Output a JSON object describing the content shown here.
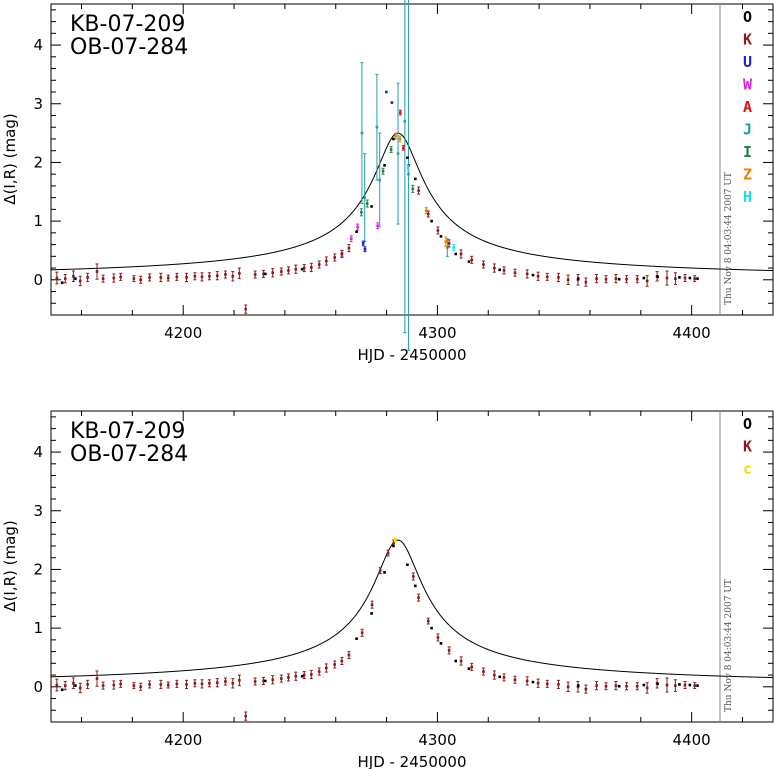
{
  "chart_data": [
    {
      "type": "scatter",
      "title": [
        "KB-07-209",
        "OB-07-284"
      ],
      "xlabel": "HJD - 2450000",
      "ylabel": "Δ(I,R) (mag)",
      "xlim": [
        4148,
        4432
      ],
      "ylim": [
        -0.6,
        4.7
      ],
      "xticks": [
        4200,
        4300,
        4400
      ],
      "yticks": [
        0,
        1,
        2,
        3,
        4
      ],
      "grid": false,
      "legend_placement": "right-strip",
      "legend": [
        {
          "label": "O",
          "color": "#000000"
        },
        {
          "label": "K",
          "color": "#8b1a1a"
        },
        {
          "label": "U",
          "color": "#1f1fd0"
        },
        {
          "label": "W",
          "color": "#e020e0"
        },
        {
          "label": "A",
          "color": "#e01010"
        },
        {
          "label": "J",
          "color": "#20a0a0"
        },
        {
          "label": "I",
          "color": "#208040"
        },
        {
          "label": "Z",
          "color": "#f08000"
        },
        {
          "label": "H",
          "color": "#20e0e0"
        }
      ],
      "timestamp": "Thu Nov 8 04:03:44 2007 UT",
      "model": {
        "t0": 4284.5,
        "amp": 2.5,
        "tau": 9.3
      },
      "series": [
        {
          "name": "J",
          "color": "#20a0a0",
          "x": [
            4270.3,
            4271.4,
            4276.2,
            4277.3,
            4284.5,
            4287.2,
            4288.6,
            4303.9
          ],
          "y": [
            2.5,
            1.4,
            2.6,
            1.7,
            2.15,
            2.7,
            1.8,
            0.55
          ],
          "err": [
            1.2,
            0.75,
            0.9,
            0.8,
            1.2,
            3.6,
            3.0,
            0.15
          ]
        },
        {
          "name": "U",
          "color": "#1f1fd0",
          "x": [
            4270.8,
            4271.5,
            4279.9,
            4282.1,
            4288.7
          ],
          "y": [
            0.62,
            0.52,
            3.2,
            3.02,
            1.95
          ],
          "err": [
            0.04,
            0.04,
            0.0,
            0.0,
            0.0
          ]
        },
        {
          "name": "W",
          "color": "#e020e0",
          "x": [
            4262.5,
            4266.1,
            4268.6,
            4276.5
          ],
          "y": [
            0.45,
            0.7,
            0.9,
            0.92
          ],
          "err": [
            0.05,
            0.05,
            0.05,
            0.05
          ]
        },
        {
          "name": "A",
          "color": "#e01010",
          "x": [
            4285.4,
            4286.6
          ],
          "y": [
            2.85,
            2.25
          ],
          "err": [
            0.04,
            0.04
          ]
        },
        {
          "name": "I",
          "color": "#208040",
          "x": [
            4270.1,
            4272.4,
            4278.6,
            4281.8,
            4290.3
          ],
          "y": [
            1.15,
            1.3,
            1.85,
            2.22,
            1.55
          ],
          "err": [
            0.06,
            0.06,
            0.05,
            0.05,
            0.06
          ]
        },
        {
          "name": "Z",
          "color": "#f08000",
          "x": [
            4283.6,
            4285.3,
            4295.6,
            4303.3
          ],
          "y": [
            2.45,
            2.4,
            1.18,
            0.65
          ],
          "err": [
            0.05,
            0.05,
            0.05,
            0.08
          ]
        },
        {
          "name": "H",
          "color": "#20e0e0",
          "x": [
            4288.5,
            4306.4
          ],
          "y": [
            1.9,
            0.55
          ],
          "err": [
            0.05,
            0.05
          ]
        },
        {
          "name": "K",
          "color": "#8b1a1a",
          "x": [
            4150.3,
            4153.6,
            4156.8,
            4159.5,
            4162.4,
            4166.1,
            4168.5,
            4172.7,
            4175.4,
            4180.6,
            4183.3,
            4186.8,
            4191.2,
            4194.1,
            4197.5,
            4201.3,
            4204.6,
            4207.4,
            4210.3,
            4213.4,
            4216.6,
            4219.5,
            4222.1,
            4224.6,
            4228.3,
            4231.6,
            4235.2,
            4238.6,
            4241.4,
            4244.3,
            4247.6,
            4250.4,
            4253.5,
            4256.3,
            4259.6,
            4262.4,
            4265.2,
            4292.6,
            4296.4,
            4300.2,
            4304.6,
            4309.3,
            4313.5,
            4318.1,
            4322.4,
            4326.2,
            4330.5,
            4335.3,
            4339.6,
            4343.2,
            4347.6,
            4351.4,
            4355.3,
            4358.4,
            4362.6,
            4366.3,
            4370.2,
            4374.4,
            4378.6,
            4382.5,
            4386.4,
            4390.3,
            4393.6,
            4397.4,
            4401.2
          ],
          "y": [
            0.03,
            0.02,
            0.06,
            -0.02,
            0.04,
            0.14,
            0.02,
            0.03,
            0.05,
            0.02,
            0.0,
            0.04,
            0.04,
            0.03,
            0.05,
            0.04,
            0.06,
            0.05,
            0.06,
            0.07,
            0.09,
            0.06,
            0.11,
            -0.5,
            0.09,
            0.1,
            0.12,
            0.14,
            0.16,
            0.18,
            0.2,
            0.21,
            0.26,
            0.32,
            0.38,
            0.44,
            0.54,
            1.52,
            1.12,
            0.84,
            0.62,
            0.44,
            0.34,
            0.26,
            0.2,
            0.16,
            0.12,
            0.1,
            0.06,
            0.05,
            0.04,
            0.0,
            0.0,
            -0.04,
            0.02,
            0.01,
            0.02,
            0.01,
            0.01,
            -0.02,
            0.06,
            0.03,
            0.02,
            0.03,
            0.02
          ],
          "err": [
            0.1,
            0.07,
            0.09,
            0.08,
            0.07,
            0.13,
            0.06,
            0.07,
            0.06,
            0.05,
            0.06,
            0.06,
            0.07,
            0.05,
            0.06,
            0.07,
            0.06,
            0.07,
            0.06,
            0.07,
            0.06,
            0.08,
            0.09,
            0.07,
            0.06,
            0.06,
            0.07,
            0.06,
            0.06,
            0.07,
            0.06,
            0.07,
            0.06,
            0.07,
            0.06,
            0.06,
            0.06,
            0.06,
            0.05,
            0.06,
            0.06,
            0.07,
            0.06,
            0.06,
            0.07,
            0.06,
            0.06,
            0.07,
            0.07,
            0.06,
            0.07,
            0.08,
            0.09,
            0.07,
            0.07,
            0.06,
            0.07,
            0.06,
            0.06,
            0.09,
            0.08,
            0.12,
            0.1,
            0.06,
            0.05
          ]
        },
        {
          "name": "O",
          "color": "#000000",
          "x": [
            4152.4,
            4157.6,
            4232.3,
            4246.8,
            4268.2,
            4274.1,
            4279.2,
            4282.7,
            4288.2,
            4291.3,
            4297.7,
            4301.4,
            4307.2,
            4312.4,
            4324.5,
            4337.6,
            4355.4,
            4371.5,
            4381.2,
            4386.6,
            4395.2,
            4399.3,
            4402.3
          ],
          "y": [
            -0.05,
            0.02,
            0.1,
            0.18,
            0.82,
            1.25,
            1.95,
            2.4,
            2.08,
            1.72,
            1.0,
            0.74,
            0.44,
            0.31,
            0.17,
            0.08,
            0.02,
            0.01,
            0.03,
            0.05,
            0.04,
            0.03,
            0.02
          ],
          "err": [
            0.0,
            0.0,
            0.0,
            0.0,
            0.0,
            0.0,
            0.0,
            0.0,
            0.0,
            0.0,
            0.0,
            0.0,
            0.0,
            0.0,
            0.0,
            0.0,
            0.0,
            0.0,
            0.0,
            0.0,
            0.0,
            0.0,
            0.0
          ]
        }
      ]
    },
    {
      "type": "scatter",
      "title": [
        "KB-07-209",
        "OB-07-284"
      ],
      "xlabel": "HJD - 2450000",
      "ylabel": "Δ(I,R) (mag)",
      "xlim": [
        4148,
        4432
      ],
      "ylim": [
        -0.6,
        4.7
      ],
      "xticks": [
        4200,
        4300,
        4400
      ],
      "yticks": [
        0,
        1,
        2,
        3,
        4
      ],
      "grid": false,
      "legend_placement": "right-strip",
      "legend": [
        {
          "label": "O",
          "color": "#000000"
        },
        {
          "label": "K",
          "color": "#8b1a1a"
        },
        {
          "label": "c",
          "color": "#f0e000"
        }
      ],
      "timestamp": "Thu Nov 8 04:03:44 2007 UT",
      "model": {
        "t0": 4284.5,
        "amp": 2.5,
        "tau": 9.3
      },
      "series": [
        {
          "name": "K",
          "color": "#8b1a1a",
          "x": [
            4150.3,
            4153.6,
            4156.8,
            4159.5,
            4162.4,
            4166.1,
            4168.5,
            4172.7,
            4175.4,
            4180.6,
            4183.3,
            4186.8,
            4191.2,
            4194.1,
            4197.5,
            4201.3,
            4204.6,
            4207.4,
            4210.3,
            4213.4,
            4216.6,
            4219.5,
            4222.1,
            4224.6,
            4228.3,
            4231.6,
            4235.2,
            4238.6,
            4241.4,
            4244.3,
            4247.6,
            4250.4,
            4253.5,
            4256.3,
            4259.6,
            4262.4,
            4265.2,
            4270.4,
            4274.3,
            4277.5,
            4280.6,
            4282.8,
            4290.5,
            4292.6,
            4296.4,
            4300.2,
            4304.6,
            4309.3,
            4313.5,
            4318.1,
            4322.4,
            4326.2,
            4330.5,
            4335.3,
            4339.6,
            4343.2,
            4347.6,
            4351.4,
            4355.3,
            4358.4,
            4362.6,
            4366.3,
            4370.2,
            4374.4,
            4378.6,
            4382.5,
            4386.4,
            4390.3,
            4393.6,
            4397.4,
            4401.2
          ],
          "y": [
            0.03,
            0.02,
            0.06,
            -0.02,
            0.04,
            0.14,
            0.02,
            0.03,
            0.05,
            0.02,
            0.0,
            0.04,
            0.04,
            0.03,
            0.05,
            0.04,
            0.06,
            0.05,
            0.06,
            0.07,
            0.09,
            0.06,
            0.11,
            -0.5,
            0.09,
            0.1,
            0.12,
            0.14,
            0.16,
            0.18,
            0.2,
            0.21,
            0.26,
            0.32,
            0.38,
            0.44,
            0.54,
            0.92,
            1.4,
            1.98,
            2.28,
            2.45,
            1.88,
            1.52,
            1.12,
            0.84,
            0.62,
            0.44,
            0.34,
            0.26,
            0.2,
            0.16,
            0.12,
            0.1,
            0.06,
            0.05,
            0.04,
            0.0,
            0.0,
            -0.04,
            0.02,
            0.01,
            0.02,
            0.01,
            0.01,
            -0.02,
            0.06,
            0.03,
            0.02,
            0.03,
            0.02
          ],
          "err": [
            0.1,
            0.07,
            0.09,
            0.08,
            0.07,
            0.13,
            0.06,
            0.07,
            0.06,
            0.05,
            0.06,
            0.06,
            0.07,
            0.05,
            0.06,
            0.07,
            0.06,
            0.07,
            0.06,
            0.07,
            0.06,
            0.08,
            0.09,
            0.07,
            0.06,
            0.06,
            0.07,
            0.06,
            0.06,
            0.07,
            0.06,
            0.07,
            0.06,
            0.07,
            0.06,
            0.06,
            0.06,
            0.06,
            0.06,
            0.05,
            0.05,
            0.05,
            0.06,
            0.06,
            0.05,
            0.06,
            0.06,
            0.07,
            0.06,
            0.06,
            0.07,
            0.06,
            0.06,
            0.07,
            0.07,
            0.06,
            0.07,
            0.08,
            0.09,
            0.07,
            0.07,
            0.06,
            0.07,
            0.06,
            0.06,
            0.09,
            0.08,
            0.12,
            0.1,
            0.06,
            0.05
          ]
        },
        {
          "name": "c",
          "color": "#f0e000",
          "x": [
            4283.4
          ],
          "y": [
            2.5
          ],
          "err": [
            0.03
          ]
        },
        {
          "name": "O",
          "color": "#000000",
          "x": [
            4152.4,
            4157.6,
            4232.3,
            4246.8,
            4268.2,
            4274.1,
            4279.2,
            4282.7,
            4288.2,
            4291.3,
            4297.7,
            4301.4,
            4307.2,
            4312.4,
            4324.5,
            4337.6,
            4355.4,
            4371.5,
            4381.2,
            4386.6,
            4395.2,
            4399.3,
            4402.3
          ],
          "y": [
            -0.05,
            0.02,
            0.1,
            0.18,
            0.82,
            1.25,
            1.95,
            2.4,
            2.08,
            1.72,
            1.0,
            0.74,
            0.44,
            0.31,
            0.17,
            0.08,
            0.02,
            0.01,
            0.03,
            0.05,
            0.04,
            0.03,
            0.02
          ],
          "err": [
            0.0,
            0.0,
            0.0,
            0.0,
            0.0,
            0.0,
            0.0,
            0.0,
            0.0,
            0.0,
            0.0,
            0.0,
            0.0,
            0.0,
            0.0,
            0.0,
            0.0,
            0.0,
            0.0,
            0.0,
            0.0,
            0.0,
            0.0
          ]
        }
      ]
    }
  ]
}
